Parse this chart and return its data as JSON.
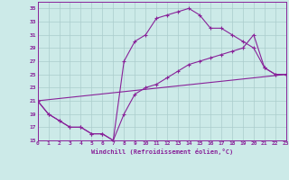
{
  "xlabel": "Windchill (Refroidissement éolien,°C)",
  "bg_color": "#cceae8",
  "grid_color": "#aacccc",
  "line_color": "#882299",
  "xlim": [
    0,
    23
  ],
  "ylim": [
    15,
    36
  ],
  "yticks": [
    15,
    17,
    19,
    21,
    23,
    25,
    27,
    29,
    31,
    33,
    35
  ],
  "xticks": [
    0,
    1,
    2,
    3,
    4,
    5,
    6,
    7,
    8,
    9,
    10,
    11,
    12,
    13,
    14,
    15,
    16,
    17,
    18,
    19,
    20,
    21,
    22,
    23
  ],
  "curve1_x": [
    0,
    1,
    2,
    3,
    4,
    5,
    6,
    7,
    8,
    9,
    10,
    11,
    12,
    13,
    14,
    15,
    16,
    17,
    18,
    19,
    20,
    21,
    22,
    23
  ],
  "curve1_y": [
    21,
    19,
    18,
    17,
    17,
    16,
    16,
    15,
    27,
    30,
    31,
    33.5,
    34,
    34.5,
    35,
    34,
    32,
    32,
    31,
    30,
    29,
    26,
    25,
    25
  ],
  "curve2_x": [
    0,
    1,
    2,
    3,
    4,
    5,
    6,
    7,
    8,
    9,
    10,
    11,
    12,
    13,
    14,
    15,
    16,
    17,
    18,
    19,
    20,
    21,
    22,
    23
  ],
  "curve2_y": [
    21,
    19,
    18,
    17,
    17,
    16,
    16,
    15,
    19,
    22,
    23,
    23.5,
    24.5,
    25.5,
    26.5,
    27,
    27.5,
    28,
    28.5,
    29,
    31,
    26,
    25,
    25
  ],
  "curve3_x": [
    0,
    23
  ],
  "curve3_y": [
    21,
    25
  ]
}
